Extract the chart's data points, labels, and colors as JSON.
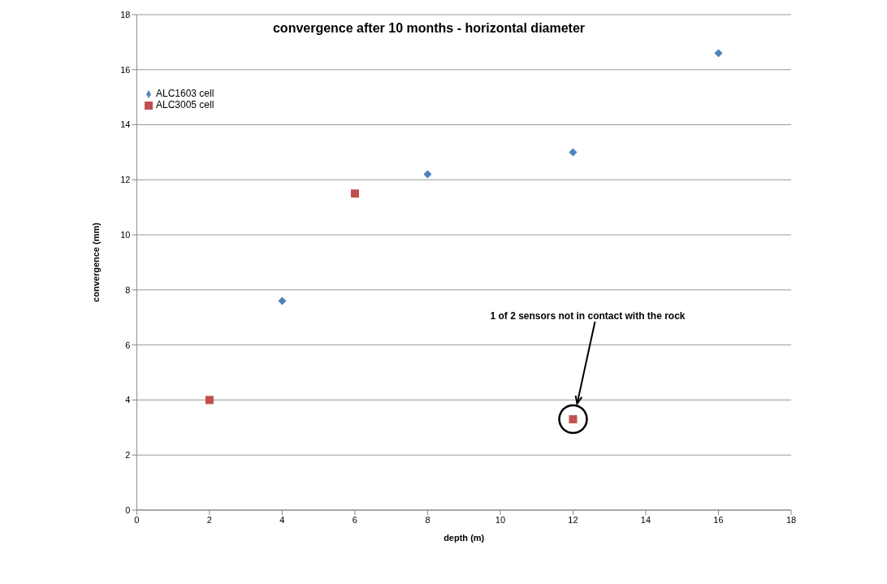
{
  "chart_data": {
    "type": "scatter",
    "title": "convergence after 10 months - horizontal diameter",
    "xlabel": "depth (m)",
    "ylabel": "convergence (mm)",
    "series": [
      {
        "name": "ALC1603 cell",
        "color": "#4f81bd",
        "marker": "diamond",
        "x": [
          4,
          8,
          12,
          16
        ],
        "values": [
          7.6,
          12.2,
          13.0,
          16.6
        ]
      },
      {
        "name": "ALC3005 cell",
        "color": "#c0504d",
        "marker": "square",
        "x": [
          2,
          6,
          12
        ],
        "values": [
          4.0,
          11.5,
          3.3
        ]
      }
    ],
    "annotations": [
      "1 of 2 sensors not in contact with the rock"
    ],
    "xlim": [
      0,
      18
    ],
    "xticks": [
      0,
      2,
      4,
      6,
      8,
      10,
      12,
      14,
      16,
      18
    ],
    "ylim": [
      0,
      18
    ],
    "yticks": [
      0,
      2,
      4,
      6,
      8,
      10,
      12,
      14,
      16,
      18
    ],
    "grid": "y",
    "legend": "top left"
  }
}
